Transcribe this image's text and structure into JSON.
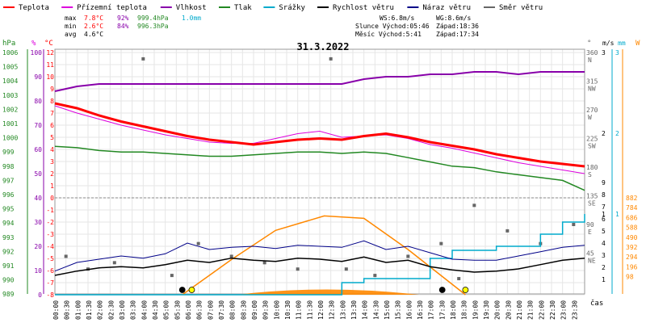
{
  "legend": [
    {
      "label": "Teplota",
      "color": "#ff0000"
    },
    {
      "label": "Přízemní teplota",
      "color": "#dd00dd"
    },
    {
      "label": "Vlhkost",
      "color": "#8800aa"
    },
    {
      "label": "Tlak",
      "color": "#228822"
    },
    {
      "label": "Srážky",
      "color": "#00aacc"
    },
    {
      "label": "Rychlost větru",
      "color": "#000000"
    },
    {
      "label": "Náraz větru",
      "color": "#000088"
    },
    {
      "label": "Směr větru",
      "color": "#666666"
    }
  ],
  "stats": {
    "max_label": "max",
    "max_temp": "7.8°C",
    "max_hum": "92%",
    "max_pres": "999.4hPa",
    "max_rain": "1.0mm",
    "min_label": "min",
    "min_temp": "2.6°C",
    "min_hum": "84%",
    "min_pres": "996.3hPa",
    "avg_label": "avg",
    "avg_temp": "4.6°C",
    "ws": "WS:6.8m/s",
    "wg": "WG:8.6m/s",
    "sun": "Slunce Východ:05:46",
    "sun_set": "Západ:18:36",
    "moon": "Měsíc Východ:5:41",
    "moon_set": "Západ:17:34"
  },
  "date_title": "31.3.2022",
  "axis_units": {
    "hpa": "hPa",
    "pct": "%",
    "degc": "°C",
    "deg": "°",
    "ms": "m/s",
    "mm": "mm",
    "w": "W",
    "time": "čas"
  },
  "chart_data": {
    "type": "line",
    "x_label": "čas",
    "x_ticks": [
      "00:00",
      "00:30",
      "01:00",
      "01:30",
      "02:00",
      "02:30",
      "03:00",
      "03:30",
      "04:00",
      "04:30",
      "05:00",
      "05:30",
      "06:00",
      "06:30",
      "07:00",
      "07:30",
      "08:00",
      "08:30",
      "09:00",
      "09:30",
      "10:00",
      "10:30",
      "11:00",
      "11:30",
      "12:00",
      "12:30",
      "13:00",
      "13:30",
      "14:00",
      "14:30",
      "15:00",
      "15:30",
      "16:00",
      "16:30",
      "17:00",
      "17:30",
      "18:00",
      "18:30",
      "19:00",
      "19:30",
      "20:00",
      "20:30",
      "21:00",
      "21:30",
      "22:00",
      "22:30",
      "23:00",
      "23:30"
    ],
    "axes": {
      "pressure_hpa": {
        "ticks": [
          "1006",
          "1005",
          "1004",
          "1003",
          "1002",
          "1001",
          "1000",
          "999",
          "998",
          "997",
          "996",
          "995",
          "994",
          "993",
          "992",
          "991",
          "990",
          "989"
        ]
      },
      "humidity_pct": {
        "ticks": [
          "100",
          "90",
          "80",
          "70",
          "60",
          "50",
          "40",
          "30",
          "20",
          "10",
          "0"
        ]
      },
      "temperature_c": {
        "ticks": [
          "12",
          "11",
          "10",
          "9",
          "8",
          "7",
          "6",
          "5",
          "4",
          "3",
          "2",
          "1",
          "0",
          "-1",
          "-2",
          "-3",
          "-4",
          "-5",
          "-6",
          "-7",
          "-8"
        ]
      },
      "direction_deg": {
        "ticks": [
          "360",
          "315",
          "270",
          "225",
          "180",
          "135",
          "90",
          "45"
        ],
        "letters": [
          "N",
          "NW",
          "W",
          "SW",
          "S",
          "SE",
          "E",
          "NE"
        ]
      },
      "wind_ms": {
        "ticks": [
          "3",
          "2",
          "1",
          "9",
          "8",
          "7",
          "6",
          "5",
          "4",
          "3",
          "2",
          "1"
        ]
      },
      "rain_mm": {
        "ticks": [
          "3",
          "2",
          "1"
        ]
      },
      "solar_w": {
        "ticks": [
          "882",
          "784",
          "686",
          "588",
          "490",
          "392",
          "294",
          "196",
          "98"
        ]
      }
    },
    "series": [
      {
        "name": "Teplota",
        "unit": "°C",
        "x_hours": [
          0,
          1,
          2,
          3,
          4,
          5,
          6,
          7,
          8,
          9,
          10,
          11,
          12,
          13,
          14,
          15,
          16,
          17,
          18,
          19,
          20,
          21,
          22,
          23,
          24
        ],
        "values": [
          7.8,
          7.4,
          6.8,
          6.3,
          5.9,
          5.5,
          5.1,
          4.8,
          4.6,
          4.4,
          4.6,
          4.8,
          4.9,
          4.8,
          5.1,
          5.3,
          5.0,
          4.6,
          4.3,
          4.0,
          3.6,
          3.3,
          3.0,
          2.8,
          2.6
        ]
      },
      {
        "name": "Přízemní teplota",
        "unit": "°C",
        "x_hours": [
          0,
          1,
          2,
          3,
          4,
          5,
          6,
          7,
          8,
          9,
          10,
          11,
          12,
          13,
          14,
          15,
          16,
          17,
          18,
          19,
          20,
          21,
          22,
          23,
          24
        ],
        "values": [
          7.6,
          7.0,
          6.5,
          6.0,
          5.6,
          5.2,
          4.9,
          4.6,
          4.5,
          4.5,
          4.9,
          5.3,
          5.5,
          5.0,
          5.1,
          5.2,
          4.9,
          4.4,
          4.1,
          3.7,
          3.3,
          2.9,
          2.6,
          2.3,
          2.0
        ]
      },
      {
        "name": "Vlhkost",
        "unit": "%",
        "x_hours": [
          0,
          1,
          2,
          3,
          4,
          5,
          6,
          7,
          8,
          9,
          10,
          11,
          12,
          13,
          14,
          15,
          16,
          17,
          18,
          19,
          20,
          21,
          22,
          23,
          24
        ],
        "values": [
          84,
          86,
          87,
          87,
          87,
          87,
          87,
          87,
          87,
          87,
          87,
          87,
          87,
          87,
          89,
          90,
          90,
          91,
          91,
          92,
          92,
          91,
          92,
          92,
          92
        ]
      },
      {
        "name": "Tlak",
        "unit": "hPa",
        "x_hours": [
          0,
          1,
          2,
          3,
          4,
          5,
          6,
          7,
          8,
          9,
          10,
          11,
          12,
          13,
          14,
          15,
          16,
          17,
          18,
          19,
          20,
          21,
          22,
          23,
          24
        ],
        "values": [
          999.4,
          999.3,
          999.1,
          999.0,
          999.0,
          998.9,
          998.8,
          998.7,
          998.7,
          998.8,
          998.9,
          999.0,
          999.0,
          998.9,
          999.0,
          998.9,
          998.6,
          998.3,
          998.0,
          997.9,
          997.6,
          997.4,
          997.2,
          997.0,
          996.3
        ]
      },
      {
        "name": "Srážky",
        "unit": "mm",
        "x_hours": [
          0,
          6,
          7,
          9,
          10,
          12,
          13,
          14,
          15,
          17,
          18,
          20,
          22,
          23,
          24
        ],
        "values": [
          0,
          0,
          0,
          0,
          0,
          0,
          0.15,
          0.2,
          0.2,
          0.45,
          0.55,
          0.6,
          0.75,
          0.9,
          1.0
        ]
      },
      {
        "name": "Rychlost větru",
        "unit": "m/s",
        "x_hours": [
          0,
          1,
          2,
          3,
          4,
          5,
          6,
          7,
          8,
          9,
          10,
          11,
          12,
          13,
          14,
          15,
          16,
          17,
          18,
          19,
          20,
          21,
          22,
          23,
          24
        ],
        "values": [
          1.8,
          2.2,
          2.5,
          2.6,
          2.5,
          2.8,
          3.2,
          3.0,
          3.4,
          3.2,
          3.1,
          3.4,
          3.3,
          3.1,
          3.5,
          3.0,
          3.2,
          2.6,
          2.3,
          2.1,
          2.2,
          2.4,
          2.8,
          3.2,
          3.4
        ]
      },
      {
        "name": "Náraz větru",
        "unit": "m/s",
        "x_hours": [
          0,
          1,
          2,
          3,
          4,
          5,
          6,
          7,
          8,
          9,
          10,
          11,
          12,
          13,
          14,
          15,
          16,
          17,
          18,
          19,
          20,
          21,
          22,
          23,
          24
        ],
        "values": [
          2.2,
          3.0,
          3.3,
          3.6,
          3.4,
          3.8,
          4.8,
          4.2,
          4.4,
          4.5,
          4.3,
          4.6,
          4.5,
          4.4,
          5.0,
          4.2,
          4.5,
          3.9,
          3.3,
          3.2,
          3.2,
          3.6,
          4.0,
          4.4,
          4.6
        ]
      },
      {
        "name": "Slunce",
        "unit": "W",
        "x_hours": [
          5.77,
          8,
          10,
          12.2,
          14,
          16,
          18.6
        ],
        "values": [
          0,
          350,
          640,
          784,
          760,
          450,
          0
        ]
      },
      {
        "name": "Směr větru",
        "unit": "°",
        "x_hours": [
          0.5,
          1.5,
          2.7,
          4,
          5.3,
          6.5,
          8,
          9.5,
          11,
          12.5,
          13.2,
          14.5,
          16,
          17.5,
          18.3,
          19,
          20.5,
          22,
          23.5
        ],
        "values": [
          40,
          20,
          30,
          350,
          10,
          60,
          40,
          30,
          20,
          350,
          20,
          10,
          40,
          60,
          5,
          120,
          80,
          60,
          90
        ]
      }
    ]
  }
}
